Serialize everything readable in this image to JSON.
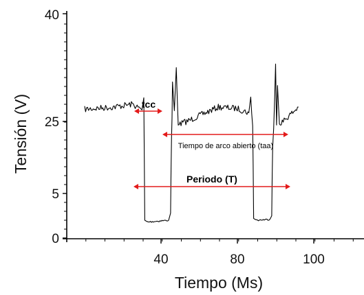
{
  "chart_data": {
    "type": "line",
    "title": "",
    "xlabel": "Tiempo (Ms)",
    "ylabel": "Tensión (V)",
    "x_ticks": [
      "40",
      "80",
      "100"
    ],
    "y_ticks": [
      "0",
      "5",
      "25",
      "40"
    ],
    "series": [
      {
        "x": [
          0,
          15,
          25,
          30,
          31,
          31.5,
          33,
          44,
          45,
          45.5,
          46,
          47,
          48,
          49,
          50,
          52,
          60,
          70,
          80,
          86,
          87,
          88,
          88.5,
          90,
          97,
          98,
          98.5,
          99,
          100,
          100.5,
          101,
          102,
          105,
          110,
          112
        ],
        "y": [
          26.7,
          27.0,
          27.4,
          26.6,
          28.3,
          2.0,
          1.8,
          2.0,
          2.8,
          20.5,
          30.5,
          26.5,
          32.5,
          24.0,
          24.2,
          24.8,
          25.8,
          27.0,
          26.8,
          26.2,
          28.4,
          23.8,
          2.2,
          2.0,
          2.1,
          2.5,
          18.0,
          23.0,
          33.0,
          24.0,
          30.0,
          24.5,
          25.3,
          26.5,
          27.0
        ]
      }
    ],
    "annotations": {
      "tcc": "tcc",
      "taa": "Tiempo de arco abierto (taa)",
      "period": "Periodo (T)"
    },
    "colors": {
      "signal": "#000000",
      "arrows": "#e31b1b"
    }
  }
}
